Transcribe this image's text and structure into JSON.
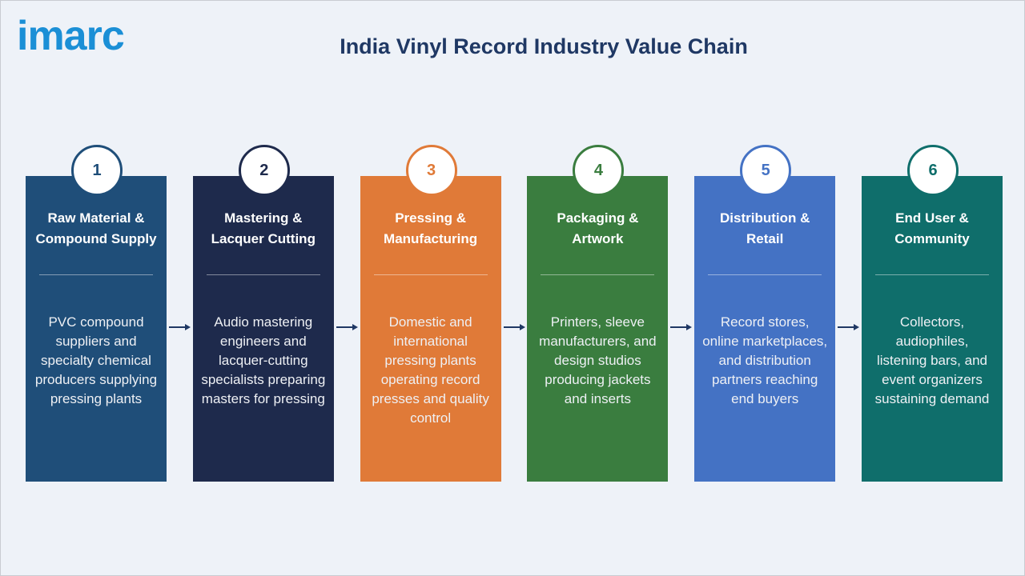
{
  "logo": "imarc",
  "title": "India Vinyl Record Industry Value Chain",
  "stages": [
    {
      "number": "1",
      "title": "Raw Material & Compound Supply",
      "description": "PVC compound suppliers and specialty chemical producers supplying pressing plants"
    },
    {
      "number": "2",
      "title": "Mastering & Lacquer Cutting",
      "description": "Audio mastering engineers and lacquer-cutting specialists preparing masters for pressing"
    },
    {
      "number": "3",
      "title": "Pressing & Manufacturing",
      "description": "Domestic and international pressing plants operating record presses and quality control"
    },
    {
      "number": "4",
      "title": "Packaging & Artwork",
      "description": "Printers, sleeve manufacturers, and design studios producing jackets and inserts"
    },
    {
      "number": "5",
      "title": "Distribution & Retail",
      "description": "Record stores, online marketplaces, and distribution partners reaching end buyers"
    },
    {
      "number": "6",
      "title": "End User & Community",
      "description": "Collectors, audiophiles, listening bars, and event organizers sustaining demand"
    }
  ]
}
